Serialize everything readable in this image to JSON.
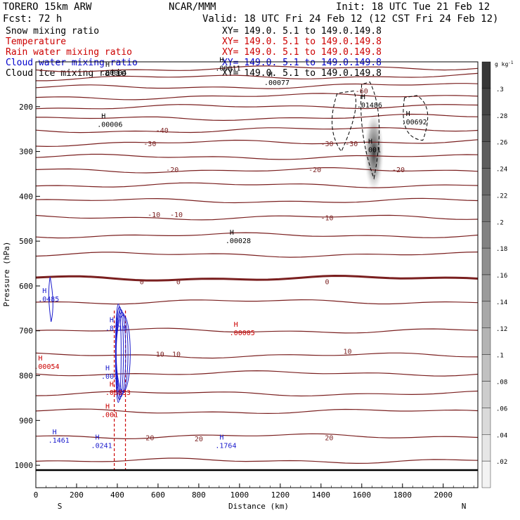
{
  "header": {
    "model": "TORERO  15km ARW",
    "center": "NCAR/MMM",
    "init": "Init: 18 UTC Tue 21 Feb 12",
    "fcst": "Fcst:   72 h",
    "valid": "Valid: 18 UTC Fri 24 Feb 12 (12 CST Fri 24 Feb 12)"
  },
  "fields": [
    {
      "name": "Snow mixing ratio",
      "xy": "XY= 149.0.  5.1 to 149.0.149.8",
      "color": "#000000"
    },
    {
      "name": "Temperature",
      "xy": "XY= 149.0.  5.1 to 149.0.149.8",
      "color": "#cc0000"
    },
    {
      "name": "Rain water mixing ratio",
      "xy": "XY= 149.0.  5.1 to 149.0.149.8",
      "color": "#cc0000"
    },
    {
      "name": "Cloud water mixing ratio",
      "xy": "XY= 149.0.  5.1 to 149.0.149.8",
      "color": "#0000cc"
    },
    {
      "name": "Cloud ice mixing ratio",
      "xy": "XY= 149.0.  5.1 to 149.0.149.8",
      "color": "#000000"
    }
  ],
  "colors": {
    "temperature": "#7a1f1f",
    "rain": "#cc0000",
    "cloud_water": "#1a1acc",
    "ice": "#000000",
    "axis": "#000000"
  },
  "chart_data": {
    "type": "cross-section",
    "xlabel": "Distance (km)",
    "ylabel": "Pressure (hPa)",
    "xlim": [
      0,
      2170
    ],
    "ylim": [
      1050,
      100
    ],
    "x_ticks": [
      0,
      200,
      400,
      600,
      800,
      1000,
      1200,
      1400,
      1600,
      1800,
      2000
    ],
    "y_ticks": [
      200,
      300,
      400,
      500,
      600,
      700,
      800,
      900,
      1000
    ],
    "left_end_label": "S",
    "right_end_label": "N",
    "colorbar": {
      "unit": "g kg",
      "unit_exp": "-1",
      "labels": [
        ".3",
        ".28",
        ".26",
        ".24",
        ".22",
        ".2",
        ".18",
        ".16",
        ".14",
        ".12",
        ".1",
        ".08",
        ".06",
        ".04",
        ".02"
      ],
      "values": [
        0.3,
        0.28,
        0.26,
        0.24,
        0.22,
        0.2,
        0.18,
        0.16,
        0.14,
        0.12,
        0.1,
        0.08,
        0.06,
        0.04,
        0.02
      ],
      "max": 0.32
    },
    "temperature_contours": [
      {
        "p": 118,
        "label": ""
      },
      {
        "p": 137,
        "label": ""
      },
      {
        "p": 158,
        "label": ""
      },
      {
        "p": 180,
        "label": ""
      },
      {
        "p": 203,
        "label": ""
      },
      {
        "p": 228,
        "label": ""
      },
      {
        "p": 255,
        "label": "-40"
      },
      {
        "p": 283,
        "label": "-30"
      },
      {
        "p": 312,
        "label": ""
      },
      {
        "p": 342,
        "label": "-20"
      },
      {
        "p": 375,
        "label": ""
      },
      {
        "p": 410,
        "label": ""
      },
      {
        "p": 447,
        "label": "-10"
      },
      {
        "p": 487,
        "label": ""
      },
      {
        "p": 530,
        "label": ""
      },
      {
        "p": 583,
        "label": "0",
        "bold": true
      },
      {
        "p": 635,
        "label": ""
      },
      {
        "p": 700,
        "label": ""
      },
      {
        "p": 755,
        "label": "10"
      },
      {
        "p": 795,
        "label": ""
      },
      {
        "p": 840,
        "label": ""
      },
      {
        "p": 880,
        "label": ""
      },
      {
        "p": 935,
        "label": "20"
      },
      {
        "p": 990,
        "label": ""
      }
    ],
    "contour_labels": [
      {
        "x": 620,
        "p": 252,
        "text": "-40"
      },
      {
        "x": 560,
        "p": 282,
        "text": "-30"
      },
      {
        "x": 1430,
        "p": 282,
        "text": "-30"
      },
      {
        "x": 1550,
        "p": 282,
        "text": "-30"
      },
      {
        "x": 1600,
        "p": 164,
        "text": "-60"
      },
      {
        "x": 670,
        "p": 340,
        "text": "-20"
      },
      {
        "x": 1370,
        "p": 340,
        "text": "-20"
      },
      {
        "x": 1780,
        "p": 340,
        "text": "-20"
      },
      {
        "x": 580,
        "p": 440,
        "text": "-10"
      },
      {
        "x": 690,
        "p": 440,
        "text": "-10"
      },
      {
        "x": 1430,
        "p": 447,
        "text": "-10"
      },
      {
        "x": 520,
        "p": 590,
        "text": "0"
      },
      {
        "x": 700,
        "p": 590,
        "text": "0"
      },
      {
        "x": 1430,
        "p": 590,
        "text": "0"
      },
      {
        "x": 610,
        "p": 751,
        "text": "10"
      },
      {
        "x": 690,
        "p": 751,
        "text": "10"
      },
      {
        "x": 1530,
        "p": 745,
        "text": "10"
      },
      {
        "x": 560,
        "p": 938,
        "text": "20"
      },
      {
        "x": 800,
        "p": 940,
        "text": "20"
      },
      {
        "x": 1440,
        "p": 938,
        "text": "20"
      }
    ],
    "extrema": [
      {
        "x": 370,
        "p": 240,
        "text": ".00006",
        "color": "black"
      },
      {
        "x": 390,
        "p": 125,
        "text": ".00004",
        "color": "black"
      },
      {
        "x": 950,
        "p": 115,
        "text": ".00011",
        "color": "black"
      },
      {
        "x": 1190,
        "p": 147,
        "text": ".00077",
        "color": "black"
      },
      {
        "x": 1000,
        "p": 500,
        "text": ".00028",
        "color": "black"
      },
      {
        "x": 1645,
        "p": 197,
        "text": ".01486",
        "color": "black"
      },
      {
        "x": 1865,
        "p": 235,
        "text": ".00692",
        "color": "black"
      },
      {
        "x": 1680,
        "p": 297,
        "text": ".001",
        "color": "black"
      },
      {
        "x": 80,
        "p": 630,
        "text": ".0485",
        "color": "blue"
      },
      {
        "x": 410,
        "p": 695,
        "text": ".8118",
        "color": "blue"
      },
      {
        "x": 390,
        "p": 802,
        "text": ".001",
        "color": "blue"
      },
      {
        "x": 410,
        "p": 838,
        "text": ".06833",
        "color": "red"
      },
      {
        "x": 390,
        "p": 888,
        "text": ".001",
        "color": "red"
      },
      {
        "x": 1020,
        "p": 705,
        "text": ".00005",
        "color": "red"
      },
      {
        "x": 60,
        "p": 780,
        "text": ".00054",
        "color": "red"
      },
      {
        "x": 130,
        "p": 945,
        "text": ".1461",
        "color": "blue"
      },
      {
        "x": 340,
        "p": 957,
        "text": ".0241",
        "color": "blue"
      },
      {
        "x": 950,
        "p": 957,
        "text": ".1764",
        "color": "blue"
      }
    ]
  }
}
